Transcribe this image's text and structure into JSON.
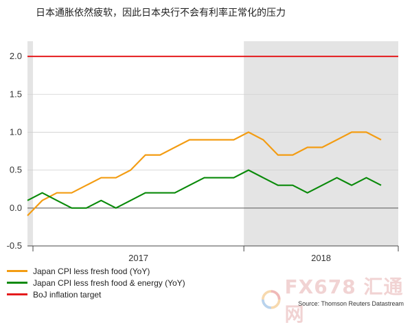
{
  "title": "日本通胀依然疲软，因此日本央行不会有利率正常化的压力",
  "source": "Source: Thomson Reuters Datastream",
  "watermark_text": "FX678 汇通网",
  "colors": {
    "cpi_core": "#f39c12",
    "cpi_core_core": "#0a8a0a",
    "boj_target": "#e41a1c",
    "shade": "#e4e4e4"
  },
  "chart_data": {
    "type": "line",
    "ylim": [
      -0.5,
      2.2
    ],
    "yticks": [
      "2.0",
      "1.5",
      "1.0",
      "0.5",
      "0.0",
      "-0.5"
    ],
    "ytick_values": [
      2.0,
      1.5,
      1.0,
      0.5,
      0.0,
      -0.5
    ],
    "x_groups": [
      "2017",
      "2018"
    ],
    "x_months": [
      "2016-10",
      "2016-11",
      "2016-12",
      "2017-01",
      "2017-02",
      "2017-03",
      "2017-04",
      "2017-05",
      "2017-06",
      "2017-07",
      "2017-08",
      "2017-09",
      "2017-10",
      "2017-11",
      "2017-12",
      "2018-01",
      "2018-02",
      "2018-03",
      "2018-04",
      "2018-05",
      "2018-06",
      "2018-07",
      "2018-08",
      "2018-09",
      "2018-10"
    ],
    "shaded": "2018",
    "grid": true,
    "legend_position": "bottom-left",
    "series": [
      {
        "name": "Japan CPI less fresh food (YoY)",
        "color_key": "cpi_core",
        "values": [
          -0.1,
          0.1,
          0.2,
          0.2,
          0.3,
          0.4,
          0.4,
          0.5,
          0.7,
          0.7,
          0.8,
          0.9,
          0.9,
          0.9,
          0.9,
          1.0,
          0.9,
          0.7,
          0.7,
          0.8,
          0.8,
          0.9,
          1.0,
          1.0,
          0.9
        ]
      },
      {
        "name": "Japan CPI less fresh food & energy (YoY)",
        "color_key": "cpi_core_core",
        "values": [
          0.1,
          0.2,
          0.1,
          0.0,
          0.0,
          0.1,
          0.0,
          0.1,
          0.2,
          0.2,
          0.2,
          0.3,
          0.4,
          0.4,
          0.4,
          0.5,
          0.4,
          0.3,
          0.3,
          0.2,
          0.3,
          0.4,
          0.3,
          0.4,
          0.3
        ]
      },
      {
        "name": "BoJ inflation target",
        "color_key": "boj_target",
        "values": [
          2.0,
          2.0,
          2.0,
          2.0,
          2.0,
          2.0,
          2.0,
          2.0,
          2.0,
          2.0,
          2.0,
          2.0,
          2.0,
          2.0,
          2.0,
          2.0,
          2.0,
          2.0,
          2.0,
          2.0,
          2.0,
          2.0,
          2.0,
          2.0,
          2.0
        ]
      }
    ]
  }
}
